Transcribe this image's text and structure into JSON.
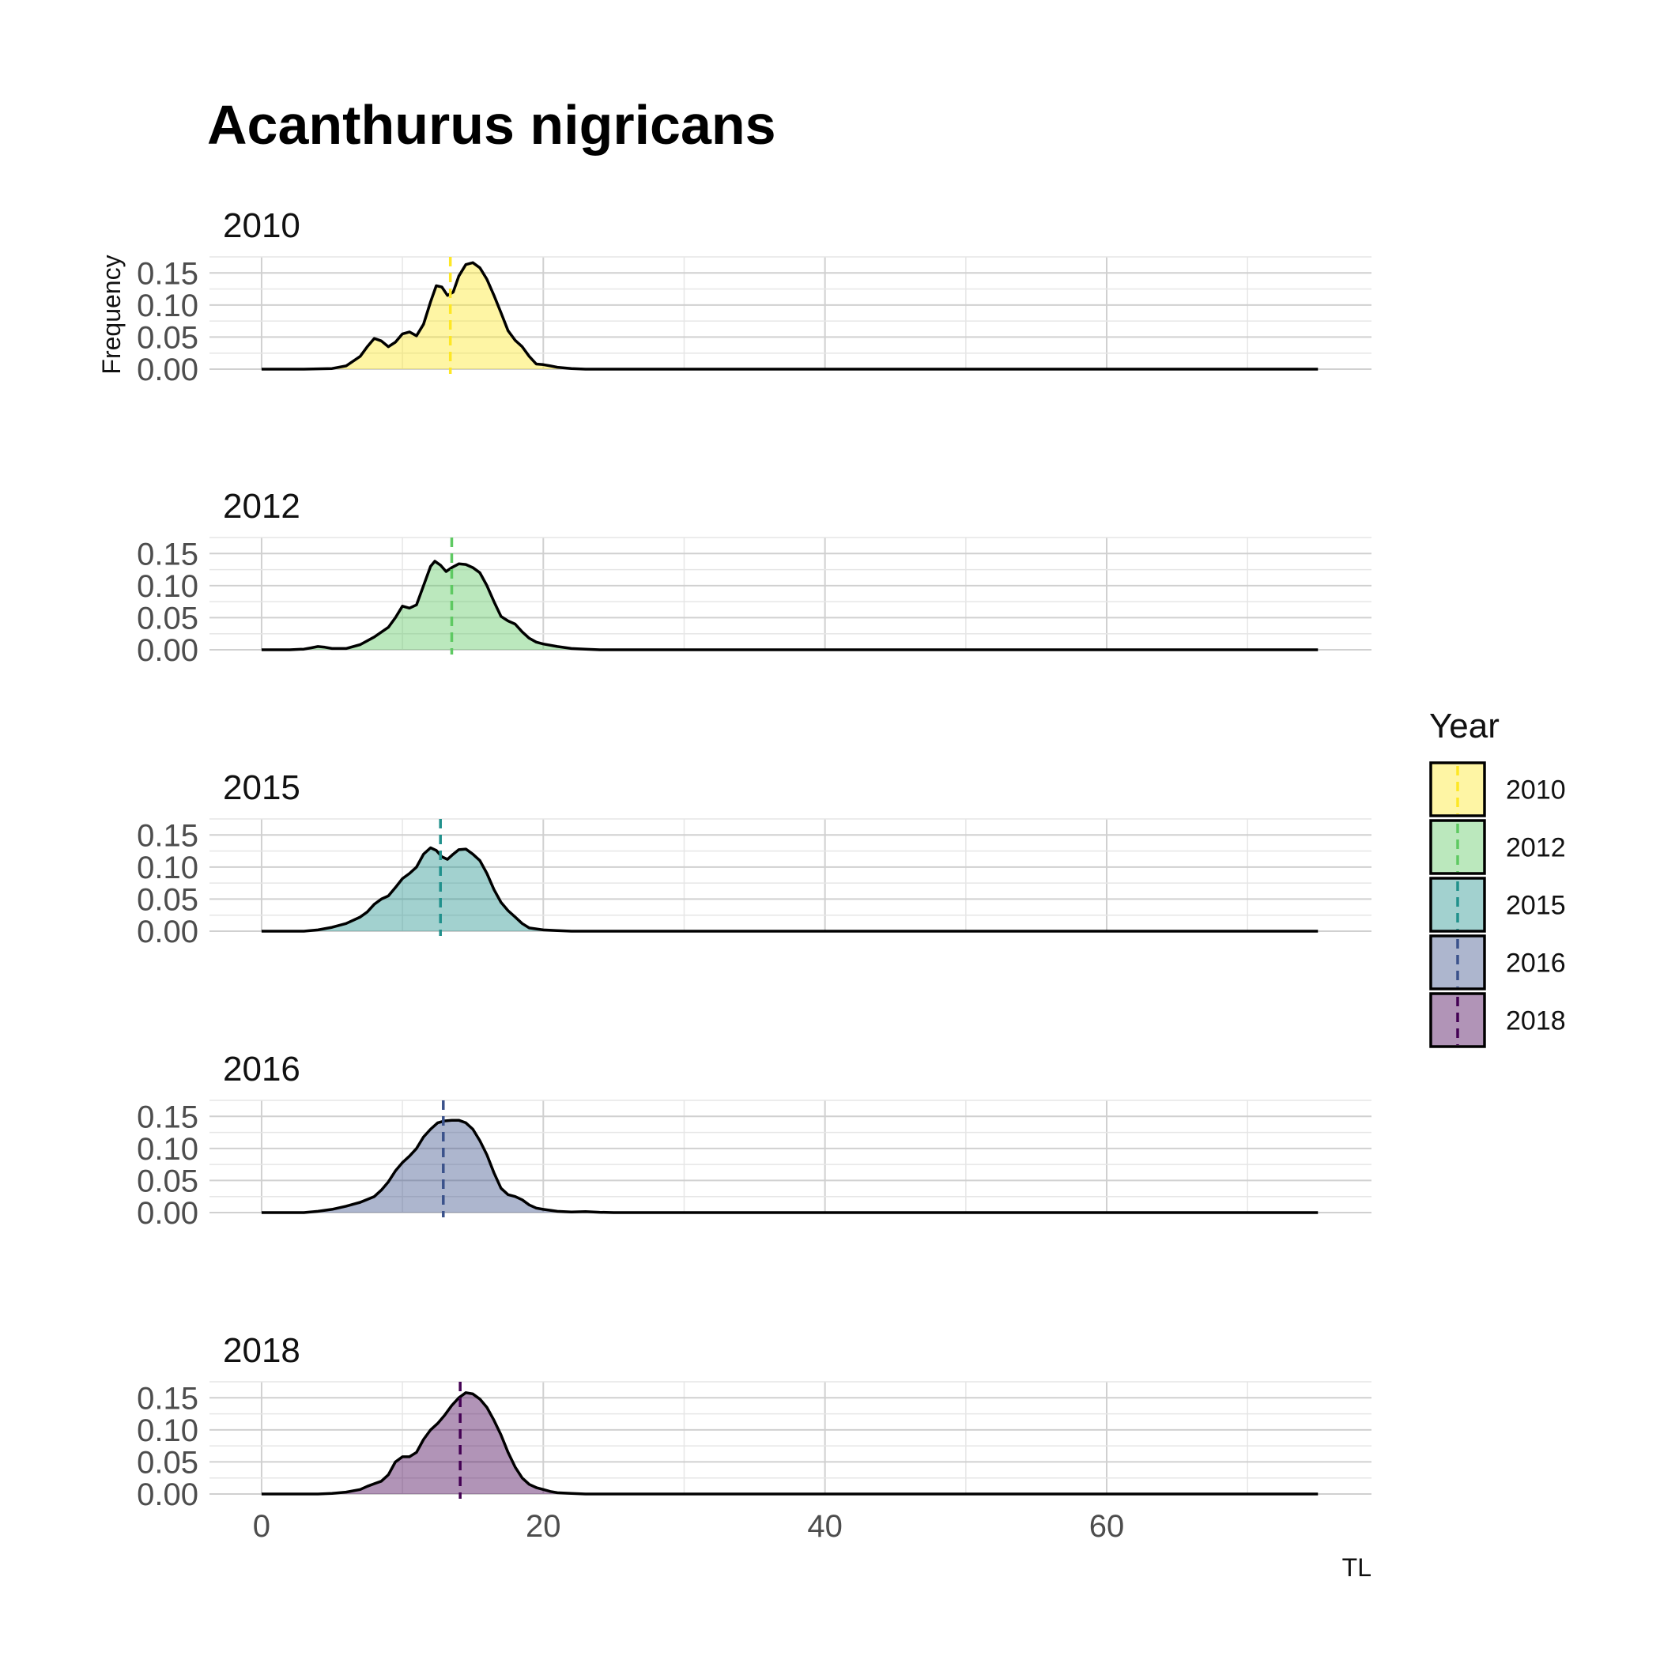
{
  "chart_data": {
    "type": "area",
    "title": "Acanthurus nigricans",
    "xlabel": "TL",
    "ylabel": "Frequency",
    "xlim": [
      -3.7,
      78.8
    ],
    "ylim": [
      0,
      0.175
    ],
    "x_ticks": [
      0,
      20,
      40,
      60
    ],
    "y_ticks": [
      "0.00",
      "0.05",
      "0.10",
      "0.15"
    ],
    "legend": {
      "title": "Year",
      "placement": "right",
      "entries": [
        "2010",
        "2012",
        "2015",
        "2016",
        "2018"
      ]
    },
    "series": [
      {
        "name": "2010",
        "color": "#fde725",
        "mean": 13.4,
        "points": [
          [
            0,
            0
          ],
          [
            3,
            0
          ],
          [
            5,
            0.001
          ],
          [
            6,
            0.005
          ],
          [
            7,
            0.02
          ],
          [
            7.5,
            0.035
          ],
          [
            8,
            0.048
          ],
          [
            8.5,
            0.044
          ],
          [
            9,
            0.035
          ],
          [
            9.5,
            0.042
          ],
          [
            10,
            0.055
          ],
          [
            10.5,
            0.058
          ],
          [
            11,
            0.052
          ],
          [
            11.5,
            0.07
          ],
          [
            12,
            0.105
          ],
          [
            12.4,
            0.13
          ],
          [
            12.8,
            0.128
          ],
          [
            13.2,
            0.115
          ],
          [
            13.6,
            0.12
          ],
          [
            14,
            0.145
          ],
          [
            14.5,
            0.163
          ],
          [
            15,
            0.166
          ],
          [
            15.5,
            0.158
          ],
          [
            16,
            0.14
          ],
          [
            16.5,
            0.115
          ],
          [
            17,
            0.088
          ],
          [
            17.5,
            0.06
          ],
          [
            18,
            0.045
          ],
          [
            18.5,
            0.035
          ],
          [
            19,
            0.02
          ],
          [
            19.5,
            0.008
          ],
          [
            20,
            0.007
          ],
          [
            20.5,
            0.005
          ],
          [
            21,
            0.003
          ],
          [
            22,
            0.001
          ],
          [
            23,
            0
          ],
          [
            75,
            0
          ]
        ]
      },
      {
        "name": "2012",
        "color": "#5ec962",
        "mean": 13.5,
        "points": [
          [
            0,
            0
          ],
          [
            2,
            0
          ],
          [
            3,
            0.001
          ],
          [
            3.5,
            0.003
          ],
          [
            4,
            0.005
          ],
          [
            4.5,
            0.004
          ],
          [
            5,
            0.002
          ],
          [
            6,
            0.002
          ],
          [
            7,
            0.008
          ],
          [
            8,
            0.02
          ],
          [
            9,
            0.035
          ],
          [
            9.5,
            0.05
          ],
          [
            10,
            0.068
          ],
          [
            10.5,
            0.065
          ],
          [
            11,
            0.07
          ],
          [
            11.5,
            0.1
          ],
          [
            12,
            0.13
          ],
          [
            12.3,
            0.138
          ],
          [
            12.7,
            0.132
          ],
          [
            13.1,
            0.122
          ],
          [
            13.5,
            0.128
          ],
          [
            14,
            0.134
          ],
          [
            14.5,
            0.133
          ],
          [
            15,
            0.128
          ],
          [
            15.5,
            0.12
          ],
          [
            16,
            0.1
          ],
          [
            16.5,
            0.075
          ],
          [
            17,
            0.052
          ],
          [
            17.5,
            0.045
          ],
          [
            18,
            0.04
          ],
          [
            18.5,
            0.028
          ],
          [
            19,
            0.018
          ],
          [
            19.5,
            0.012
          ],
          [
            20,
            0.009
          ],
          [
            21,
            0.005
          ],
          [
            22,
            0.002
          ],
          [
            23,
            0.001
          ],
          [
            24,
            0
          ],
          [
            75,
            0
          ]
        ]
      },
      {
        "name": "2015",
        "color": "#21918c",
        "mean": 12.7,
        "points": [
          [
            0,
            0
          ],
          [
            3,
            0
          ],
          [
            4,
            0.002
          ],
          [
            5,
            0.006
          ],
          [
            6,
            0.012
          ],
          [
            7,
            0.022
          ],
          [
            7.5,
            0.03
          ],
          [
            8,
            0.042
          ],
          [
            8.5,
            0.05
          ],
          [
            9,
            0.055
          ],
          [
            9.5,
            0.068
          ],
          [
            10,
            0.082
          ],
          [
            10.5,
            0.09
          ],
          [
            11,
            0.1
          ],
          [
            11.5,
            0.12
          ],
          [
            12,
            0.13
          ],
          [
            12.4,
            0.126
          ],
          [
            12.8,
            0.116
          ],
          [
            13.2,
            0.112
          ],
          [
            13.6,
            0.12
          ],
          [
            14,
            0.127
          ],
          [
            14.5,
            0.128
          ],
          [
            15,
            0.12
          ],
          [
            15.5,
            0.11
          ],
          [
            16,
            0.09
          ],
          [
            16.5,
            0.065
          ],
          [
            17,
            0.045
          ],
          [
            17.5,
            0.032
          ],
          [
            18,
            0.022
          ],
          [
            18.5,
            0.012
          ],
          [
            19,
            0.005
          ],
          [
            20,
            0.002
          ],
          [
            21,
            0.001
          ],
          [
            22,
            0
          ],
          [
            75,
            0
          ]
        ]
      },
      {
        "name": "2016",
        "color": "#3b528b",
        "mean": 12.9,
        "points": [
          [
            0,
            0
          ],
          [
            3,
            0
          ],
          [
            4,
            0.002
          ],
          [
            5,
            0.005
          ],
          [
            6,
            0.01
          ],
          [
            7,
            0.016
          ],
          [
            8,
            0.025
          ],
          [
            8.5,
            0.035
          ],
          [
            9,
            0.048
          ],
          [
            9.5,
            0.065
          ],
          [
            10,
            0.078
          ],
          [
            10.5,
            0.088
          ],
          [
            11,
            0.1
          ],
          [
            11.5,
            0.118
          ],
          [
            12,
            0.13
          ],
          [
            12.5,
            0.14
          ],
          [
            13,
            0.143
          ],
          [
            13.5,
            0.144
          ],
          [
            14,
            0.144
          ],
          [
            14.5,
            0.14
          ],
          [
            15,
            0.13
          ],
          [
            15.5,
            0.112
          ],
          [
            16,
            0.09
          ],
          [
            16.5,
            0.062
          ],
          [
            17,
            0.038
          ],
          [
            17.5,
            0.028
          ],
          [
            18,
            0.025
          ],
          [
            18.5,
            0.02
          ],
          [
            19,
            0.012
          ],
          [
            19.5,
            0.007
          ],
          [
            20,
            0.005
          ],
          [
            21,
            0.002
          ],
          [
            22,
            0.001
          ],
          [
            23,
            0.0015
          ],
          [
            24,
            0.0005
          ],
          [
            25,
            0
          ],
          [
            75,
            0
          ]
        ]
      },
      {
        "name": "2018",
        "color": "#440154",
        "mean": 14.1,
        "points": [
          [
            0,
            0
          ],
          [
            4,
            0
          ],
          [
            5,
            0.001
          ],
          [
            6,
            0.003
          ],
          [
            7,
            0.007
          ],
          [
            7.5,
            0.012
          ],
          [
            8,
            0.016
          ],
          [
            8.5,
            0.02
          ],
          [
            9,
            0.03
          ],
          [
            9.5,
            0.05
          ],
          [
            10,
            0.058
          ],
          [
            10.5,
            0.058
          ],
          [
            11,
            0.065
          ],
          [
            11.5,
            0.085
          ],
          [
            12,
            0.1
          ],
          [
            12.5,
            0.11
          ],
          [
            13,
            0.123
          ],
          [
            13.5,
            0.138
          ],
          [
            14,
            0.15
          ],
          [
            14.5,
            0.158
          ],
          [
            15,
            0.156
          ],
          [
            15.5,
            0.148
          ],
          [
            16,
            0.135
          ],
          [
            16.5,
            0.115
          ],
          [
            17,
            0.092
          ],
          [
            17.5,
            0.065
          ],
          [
            18,
            0.042
          ],
          [
            18.5,
            0.025
          ],
          [
            19,
            0.015
          ],
          [
            19.5,
            0.01
          ],
          [
            20,
            0.007
          ],
          [
            20.5,
            0.004
          ],
          [
            21,
            0.002
          ],
          [
            22,
            0.001
          ],
          [
            23,
            0
          ],
          [
            75,
            0
          ]
        ]
      }
    ]
  }
}
